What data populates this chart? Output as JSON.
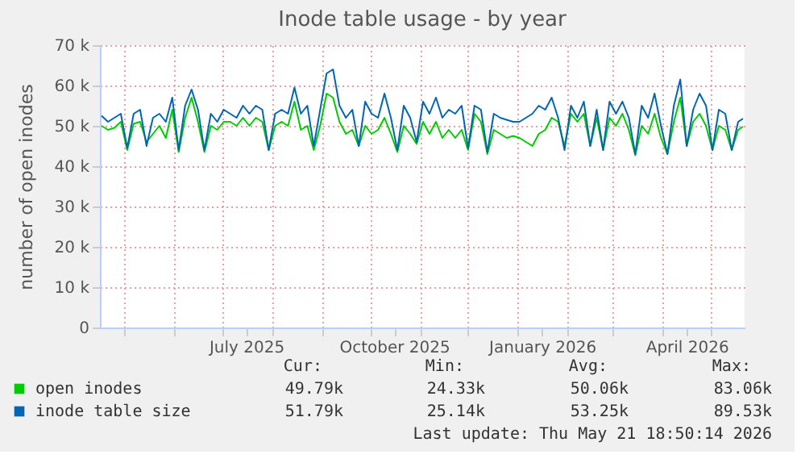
{
  "chart_data": {
    "type": "line",
    "title": "Inode table usage - by year",
    "ylabel": "number of open inodes",
    "x": [
      "2025-04-17",
      "2025-04-21",
      "2025-04-25",
      "2025-04-29",
      "2025-05-03",
      "2025-05-07",
      "2025-05-11",
      "2025-05-15",
      "2025-05-19",
      "2025-05-23",
      "2025-05-27",
      "2025-05-31",
      "2025-06-04",
      "2025-06-08",
      "2025-06-12",
      "2025-06-16",
      "2025-06-20",
      "2025-06-24",
      "2025-06-28",
      "2025-07-02",
      "2025-07-06",
      "2025-07-10",
      "2025-07-14",
      "2025-07-18",
      "2025-07-22",
      "2025-07-26",
      "2025-07-30",
      "2025-08-03",
      "2025-08-07",
      "2025-08-11",
      "2025-08-15",
      "2025-08-19",
      "2025-08-23",
      "2025-08-27",
      "2025-08-31",
      "2025-09-04",
      "2025-09-08",
      "2025-09-12",
      "2025-09-16",
      "2025-09-20",
      "2025-09-24",
      "2025-09-28",
      "2025-10-02",
      "2025-10-06",
      "2025-10-10",
      "2025-10-14",
      "2025-10-18",
      "2025-10-22",
      "2025-10-26",
      "2025-10-30",
      "2025-11-03",
      "2025-11-07",
      "2025-11-11",
      "2025-11-15",
      "2025-11-19",
      "2025-11-23",
      "2025-11-27",
      "2025-12-01",
      "2025-12-05",
      "2025-12-09",
      "2025-12-13",
      "2025-12-17",
      "2025-12-21",
      "2025-12-25",
      "2025-12-29",
      "2026-01-02",
      "2026-01-06",
      "2026-01-10",
      "2026-01-14",
      "2026-01-18",
      "2026-01-22",
      "2026-01-26",
      "2026-01-30",
      "2026-02-03",
      "2026-02-07",
      "2026-02-11",
      "2026-02-15",
      "2026-02-19",
      "2026-02-23",
      "2026-02-27",
      "2026-03-03",
      "2026-03-07",
      "2026-03-11",
      "2026-03-15",
      "2026-03-19",
      "2026-03-23",
      "2026-03-27",
      "2026-03-31",
      "2026-04-04",
      "2026-04-08",
      "2026-04-12",
      "2026-04-16",
      "2026-04-20",
      "2026-04-24",
      "2026-04-28",
      "2026-05-02",
      "2026-05-06",
      "2026-05-10",
      "2026-05-14",
      "2026-05-18",
      "2026-05-21"
    ],
    "series": [
      {
        "name": "open inodes",
        "color": "#00cc00",
        "values": [
          50,
          49,
          49.5,
          51,
          44,
          50.5,
          51,
          46,
          48,
          50,
          47,
          54,
          43.5,
          52,
          57,
          51,
          43.5,
          50,
          49,
          51,
          51,
          50,
          52,
          50,
          52,
          51,
          44,
          50,
          51,
          50,
          56,
          49,
          50,
          44,
          50,
          58,
          57,
          51,
          48,
          49,
          45,
          50,
          48,
          49,
          52,
          48,
          43.5,
          50,
          48,
          45.5,
          51,
          48,
          51,
          47,
          49,
          47,
          49,
          44,
          53,
          51,
          43,
          49,
          48,
          47,
          47.5,
          47,
          46,
          45,
          48,
          49,
          52,
          51,
          45,
          53,
          51,
          53,
          45,
          52,
          44,
          52,
          50,
          53,
          49,
          42.7,
          50,
          48,
          53,
          47,
          43,
          51,
          57,
          45,
          51,
          53,
          50,
          44,
          50,
          49,
          44,
          49,
          49.8
        ]
      },
      {
        "name": "inode table size",
        "color": "#0066b3",
        "values": [
          52.5,
          51,
          52,
          53,
          44.5,
          53,
          54,
          45,
          52,
          53,
          51,
          57,
          44,
          55,
          59,
          54,
          44,
          53,
          51,
          54,
          53,
          52,
          55,
          53,
          55,
          54,
          44,
          53,
          54,
          53,
          59.5,
          53,
          55,
          45,
          54,
          63,
          64,
          55,
          52,
          54,
          45,
          56,
          53,
          52,
          58,
          52,
          44,
          55,
          52,
          46,
          56,
          53,
          57,
          52,
          54,
          53,
          55,
          44.5,
          55,
          54,
          43.5,
          53,
          52,
          51.5,
          51,
          51,
          52,
          53,
          55,
          54,
          57,
          52,
          44,
          55,
          52,
          56,
          45,
          54,
          44,
          56,
          53,
          56,
          52,
          43,
          55,
          52,
          58,
          50,
          43,
          55,
          61.5,
          45,
          54,
          58,
          55,
          44,
          54,
          53,
          44,
          51,
          51.8
        ]
      }
    ],
    "xlim": [
      "2025-04-16",
      "2026-05-22"
    ],
    "xticks": [
      {
        "value": "2025-05-01",
        "label": null
      },
      {
        "value": "2025-06-01",
        "label": null
      },
      {
        "value": "2025-07-01",
        "label": null
      },
      {
        "value": "2025-07-16",
        "label": "July 2025"
      },
      {
        "value": "2025-08-01",
        "label": null
      },
      {
        "value": "2025-09-01",
        "label": null
      },
      {
        "value": "2025-10-01",
        "label": null
      },
      {
        "value": "2025-10-16",
        "label": "October 2025"
      },
      {
        "value": "2025-11-01",
        "label": null
      },
      {
        "value": "2025-12-01",
        "label": null
      },
      {
        "value": "2026-01-01",
        "label": null
      },
      {
        "value": "2026-01-16",
        "label": "January 2026"
      },
      {
        "value": "2026-02-01",
        "label": null
      },
      {
        "value": "2026-03-01",
        "label": null
      },
      {
        "value": "2026-04-01",
        "label": null
      },
      {
        "value": "2026-04-16",
        "label": "April 2026"
      },
      {
        "value": "2026-05-01",
        "label": null
      }
    ],
    "ylim": [
      0,
      70
    ],
    "yticks": [
      0,
      {
        "value": 10,
        "label": "10 k"
      },
      {
        "value": 20,
        "label": "20 k"
      },
      {
        "value": 30,
        "label": "30 k"
      },
      {
        "value": 40,
        "label": "40 k"
      },
      {
        "value": 50,
        "label": "50 k"
      },
      {
        "value": 60,
        "label": "60 k"
      },
      {
        "value": 70,
        "label": "70 k"
      }
    ],
    "grid": true,
    "legend": "bottom",
    "line_style": "solid",
    "marker": "none",
    "annotations": [
      "Cur:",
      "Min:",
      "Avg:",
      "Max:",
      "49.79k",
      "24.33k",
      "50.06k",
      "83.06k",
      "51.79k",
      "25.14k",
      "53.25k",
      "89.53k",
      "Last update: Thu May 21 18:50:14 2026"
    ]
  }
}
